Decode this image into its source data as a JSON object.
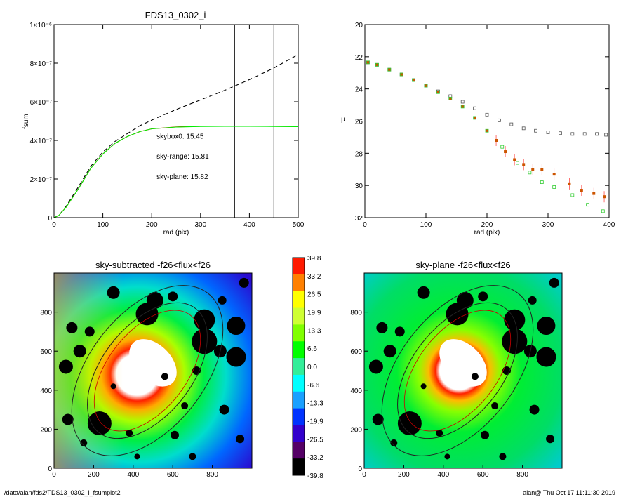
{
  "chart_data": [
    {
      "type": "line",
      "title": "FDS13_0302_i",
      "xlabel": "rad (pix)",
      "ylabel": "fsum",
      "xlim": [
        0,
        500
      ],
      "ylim": [
        0,
        1e-06
      ],
      "x_ticks": [
        "0",
        "100",
        "200",
        "300",
        "400",
        "500"
      ],
      "y_ticks": [
        "0",
        "2×10⁻⁷",
        "4×10⁻⁷",
        "6×10⁻⁷",
        "8×10⁻⁷",
        "1×10⁻⁶"
      ],
      "vlines": [
        {
          "x": 350,
          "color": "#ff0000"
        },
        {
          "x": 370,
          "color": "#000000"
        },
        {
          "x": 450,
          "color": "#000000"
        }
      ],
      "series": [
        {
          "color": "#000000",
          "dashed": true,
          "x": [
            0,
            10,
            25,
            50,
            75,
            100,
            125,
            150,
            175,
            200,
            250,
            300,
            350,
            400,
            450,
            500
          ],
          "y": [
            0,
            1.2e-08,
            6e-08,
            1.6e-07,
            2.65e-07,
            3.4e-07,
            3.95e-07,
            4.35e-07,
            4.75e-07,
            5.05e-07,
            5.6e-07,
            6.1e-07,
            6.6e-07,
            7.15e-07,
            7.75e-07,
            8.45e-07
          ]
        },
        {
          "color": "#ff0000",
          "dashed": false,
          "x": [
            0,
            10,
            25,
            50,
            75,
            100,
            125,
            150,
            175,
            200,
            250,
            300,
            350,
            400,
            450,
            500
          ],
          "y": [
            0,
            1.2e-08,
            5.5e-08,
            1.5e-07,
            2.55e-07,
            3.3e-07,
            3.85e-07,
            4.2e-07,
            4.45e-07,
            4.6e-07,
            4.7e-07,
            4.73e-07,
            4.74e-07,
            4.74e-07,
            4.73e-07,
            4.72e-07
          ]
        },
        {
          "color": "#00ee00",
          "dashed": false,
          "x": [
            0,
            10,
            25,
            50,
            75,
            100,
            125,
            150,
            175,
            200,
            250,
            300,
            350,
            400,
            450,
            500
          ],
          "y": [
            0,
            1.2e-08,
            5.5e-08,
            1.5e-07,
            2.55e-07,
            3.3e-07,
            3.85e-07,
            4.2e-07,
            4.45e-07,
            4.6e-07,
            4.69e-07,
            4.72e-07,
            4.73e-07,
            4.73e-07,
            4.72e-07,
            4.71e-07
          ]
        }
      ],
      "annotations": [
        {
          "text": "skybox0: 15.45",
          "color": "#000000",
          "x": 210,
          "y": 4.1e-07
        },
        {
          "text": "sky-range: 15.81",
          "color": "#ff0000",
          "x": 210,
          "y": 3.05e-07
        },
        {
          "text": "sky-plane: 15.82",
          "color": "#00ee00",
          "x": 210,
          "y": 2e-07
        }
      ]
    },
    {
      "type": "scatter",
      "xlabel": "rad (pix)",
      "ylabel": "μ",
      "xlim": [
        0,
        400
      ],
      "ylim": [
        32,
        20
      ],
      "x_ticks": [
        "0",
        "100",
        "200",
        "300",
        "400"
      ],
      "y_ticks": [
        "20",
        "22",
        "24",
        "26",
        "28",
        "30",
        "32"
      ],
      "series": [
        {
          "color": "#555555",
          "marker": "open-square",
          "x": [
            5,
            20,
            40,
            60,
            80,
            100,
            120,
            140,
            160,
            180,
            200,
            220,
            240,
            260,
            280,
            300,
            320,
            340,
            360,
            380,
            395
          ],
          "y": [
            22.35,
            22.5,
            22.8,
            23.1,
            23.45,
            23.8,
            24.15,
            24.45,
            24.8,
            25.2,
            25.6,
            25.95,
            26.2,
            26.45,
            26.6,
            26.7,
            26.75,
            26.8,
            26.8,
            26.8,
            26.85
          ]
        },
        {
          "color": "#cc5500",
          "marker": "filled-square",
          "x": [
            5,
            20,
            40,
            60,
            80,
            100,
            120,
            140,
            160,
            180,
            200,
            215,
            230,
            245,
            260,
            275,
            290,
            310,
            335,
            355,
            375,
            392
          ],
          "y": [
            22.35,
            22.5,
            22.8,
            23.1,
            23.45,
            23.8,
            24.2,
            24.6,
            25.1,
            25.8,
            26.6,
            27.2,
            27.9,
            28.4,
            28.7,
            29.0,
            29.0,
            29.3,
            29.9,
            30.3,
            30.5,
            30.7
          ]
        },
        {
          "color": "#33cc33",
          "marker": "open-square",
          "x": [
            5,
            20,
            40,
            60,
            80,
            100,
            120,
            140,
            160,
            180,
            200,
            225,
            250,
            270,
            290,
            310,
            340,
            365,
            390
          ],
          "y": [
            22.35,
            22.5,
            22.8,
            23.1,
            23.45,
            23.8,
            24.2,
            24.6,
            25.1,
            25.8,
            26.6,
            27.6,
            28.6,
            29.2,
            29.8,
            30.1,
            30.6,
            31.2,
            31.6
          ]
        }
      ]
    },
    {
      "type": "heatmap",
      "title": "sky-subtracted -f26<flux<f26",
      "xlim": [
        0,
        1000
      ],
      "ylim": [
        0,
        1000
      ],
      "x_ticks": [
        "0",
        "200",
        "400",
        "600",
        "800"
      ],
      "y_ticks": [
        "0",
        "200",
        "400",
        "600",
        "800"
      ]
    },
    {
      "type": "heatmap",
      "title": "sky-plane -f26<flux<f26",
      "xlim": [
        0,
        1000
      ],
      "ylim": [
        0,
        1000
      ],
      "x_ticks": [
        "0",
        "200",
        "400",
        "600",
        "800"
      ],
      "y_ticks": [
        "0",
        "200",
        "400",
        "600",
        "800"
      ]
    }
  ],
  "colorbar": {
    "labels": [
      "39.8",
      "33.2",
      "26.5",
      "19.9",
      "13.3",
      "6.6",
      "0.0",
      "-6.6",
      "-13.3",
      "-19.9",
      "-26.5",
      "-33.2",
      "-39.8"
    ],
    "colors": [
      "#ff1a00",
      "#ff8000",
      "#ffff00",
      "#cfff33",
      "#80ff00",
      "#00ff00",
      "#33ee99",
      "#00ffff",
      "#1aa0ff",
      "#0033ff",
      "#3300cc",
      "#550066",
      "#000000"
    ]
  },
  "footer": {
    "left": "/data/alan/fds2/FDS13_0302_i_fsumplot2",
    "right": "alan@  Thu Oct 17 11:11:30 2019"
  }
}
